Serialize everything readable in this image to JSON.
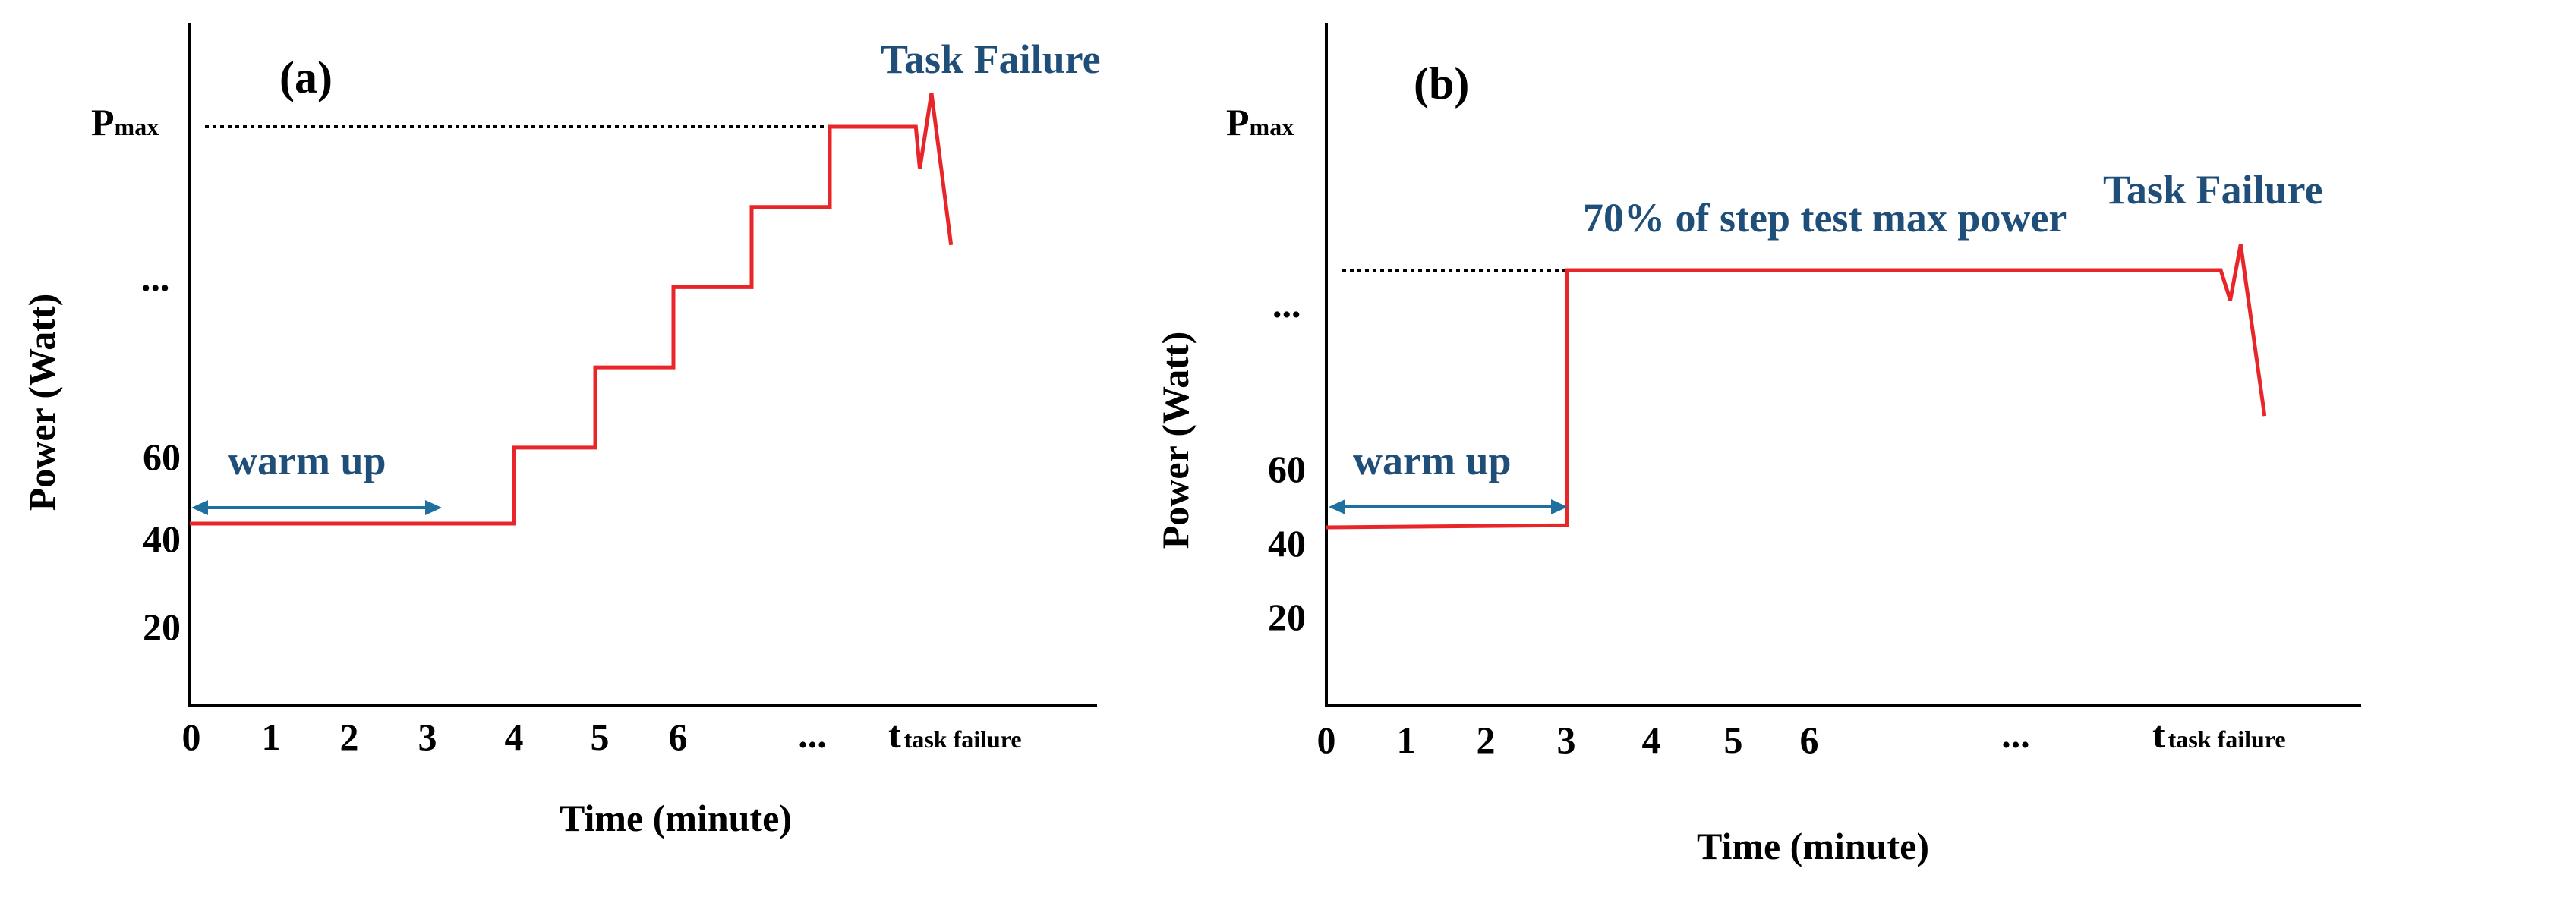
{
  "chart_data": [
    {
      "type": "line",
      "panel_label": "(a)",
      "xlabel": "Time (minute)",
      "ylabel": "Power (Watt)",
      "x_ticks": [
        "0",
        "1",
        "2",
        "3",
        "4",
        "5",
        "6",
        "...",
        "t"
      ],
      "x_tick_last_subscript": "task failure",
      "y_ticks": [
        "20",
        "40",
        "60",
        "..."
      ],
      "y_max_label": "P",
      "y_max_label_subscript": "max",
      "series": [
        {
          "x": [
            0,
            4,
            4,
            5,
            5,
            6,
            6,
            7,
            7,
            8,
            8,
            9.1,
            9.15,
            9.3,
            9.55
          ],
          "y": [
            40,
            40,
            58,
            58,
            77,
            77,
            96,
            96,
            115,
            115,
            134,
            134,
            124,
            142,
            106
          ]
        }
      ],
      "p_max": 134,
      "warm_up": {
        "label": "warm up",
        "from": 0,
        "to": 3
      },
      "annotations": {
        "task_failure": "Task Failure"
      }
    },
    {
      "type": "line",
      "panel_label": "(b)",
      "xlabel": "Time (minute)",
      "ylabel": "Power (Watt)",
      "x_ticks": [
        "0",
        "1",
        "2",
        "3",
        "4",
        "5",
        "6",
        "...",
        "t"
      ],
      "x_tick_last_subscript": "task failure",
      "y_ticks": [
        "20",
        "40",
        "60",
        "..."
      ],
      "y_max_label": "P",
      "y_max_label_subscript": "max",
      "series": [
        {
          "x": [
            0,
            3,
            3,
            11.2,
            11.32,
            11.45,
            11.75
          ],
          "y": [
            40,
            40.5,
            100,
            100,
            93,
            106,
            66
          ]
        }
      ],
      "level_line": 100,
      "warm_up": {
        "label": "warm up",
        "from": 0,
        "to": 3
      },
      "annotations": {
        "task_failure": "Task Failure",
        "level_label": "70% of step test max power"
      }
    }
  ]
}
